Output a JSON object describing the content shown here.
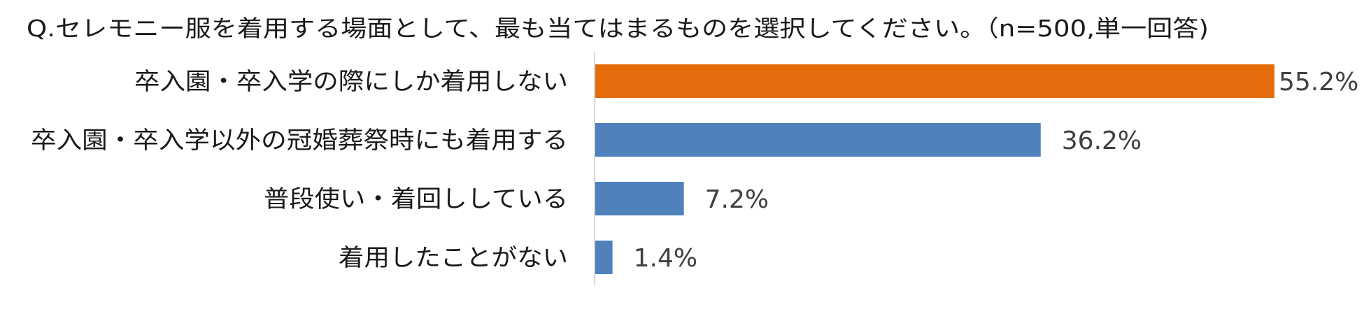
{
  "chart_data": {
    "type": "bar",
    "orientation": "horizontal",
    "title": "Q.セレモニー服を着用する場面として、最も当てはまるものを選択してください。（n=500,単一回答)",
    "categories": [
      "卒入園・卒入学の際にしか着用しない",
      "卒入園・卒入学以外の冠婚葬祭時にも着用する",
      "普段使い・着回ししている",
      "着用したことがない"
    ],
    "values": [
      55.2,
      36.2,
      7.2,
      1.4
    ],
    "value_labels": [
      "55.2%",
      "36.2%",
      "7.2%",
      "1.4%"
    ],
    "colors": [
      "#E46C0A",
      "#4F81BD",
      "#4F81BD",
      "#4F81BD"
    ],
    "axis_color": "#D9D9D9",
    "xlim": [
      0,
      55.2
    ],
    "grid": false,
    "legend": "none"
  }
}
